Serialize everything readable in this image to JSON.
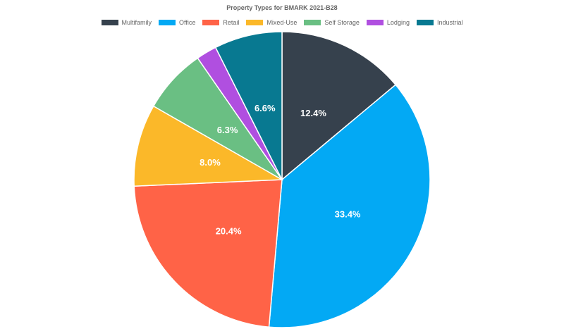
{
  "chart_data": {
    "type": "pie",
    "title": "Property Types for BMARK 2021-B28",
    "categories": [
      "Multifamily",
      "Office",
      "Retail",
      "Mixed-Use",
      "Self Storage",
      "Lodging",
      "Industrial"
    ],
    "values": [
      12.4,
      33.4,
      20.4,
      8.0,
      6.3,
      2.0,
      6.6
    ],
    "labels": [
      "12.4%",
      "33.4%",
      "20.4%",
      "8.0%",
      "6.3%",
      "",
      "6.6%"
    ],
    "colors": [
      "#36414d",
      "#03a9f4",
      "#ff6347",
      "#fbb829",
      "#6abf83",
      "#b04fe0",
      "#087991"
    ],
    "legend_position": "top"
  }
}
